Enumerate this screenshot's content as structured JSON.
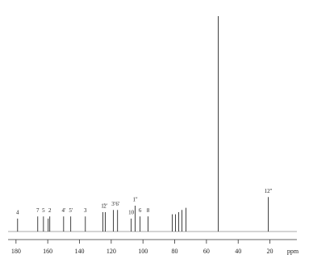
{
  "chart_data": {
    "type": "spectrum",
    "xlabel": "ppm",
    "xlim": [
      185,
      3
    ],
    "xticks": [
      180,
      160,
      140,
      120,
      100,
      80,
      60,
      40,
      20
    ],
    "ylim": [
      0,
      100
    ],
    "color": "#111111",
    "x": [
      179.0,
      166.3,
      162.7,
      159.7,
      158.7,
      150.0,
      145.5,
      136.3,
      125.2,
      123.7,
      118.6,
      116.0,
      107.4,
      104.9,
      101.8,
      96.8,
      81.5,
      79.5,
      77.5,
      75.4,
      72.9,
      52.6,
      21.1
    ],
    "values": [
      6,
      7,
      7,
      6,
      7,
      7,
      7,
      7,
      9,
      9,
      10,
      10,
      6,
      12,
      7,
      7,
      8,
      8,
      9,
      10,
      11,
      100,
      16
    ],
    "labels": [
      "4",
      "7",
      "5",
      null,
      "2",
      "4'",
      "5'",
      "3",
      "1'",
      "2'",
      "3'",
      "6'",
      "10",
      "1''",
      "6",
      "8",
      null,
      null,
      null,
      null,
      null,
      null,
      "12''"
    ]
  }
}
